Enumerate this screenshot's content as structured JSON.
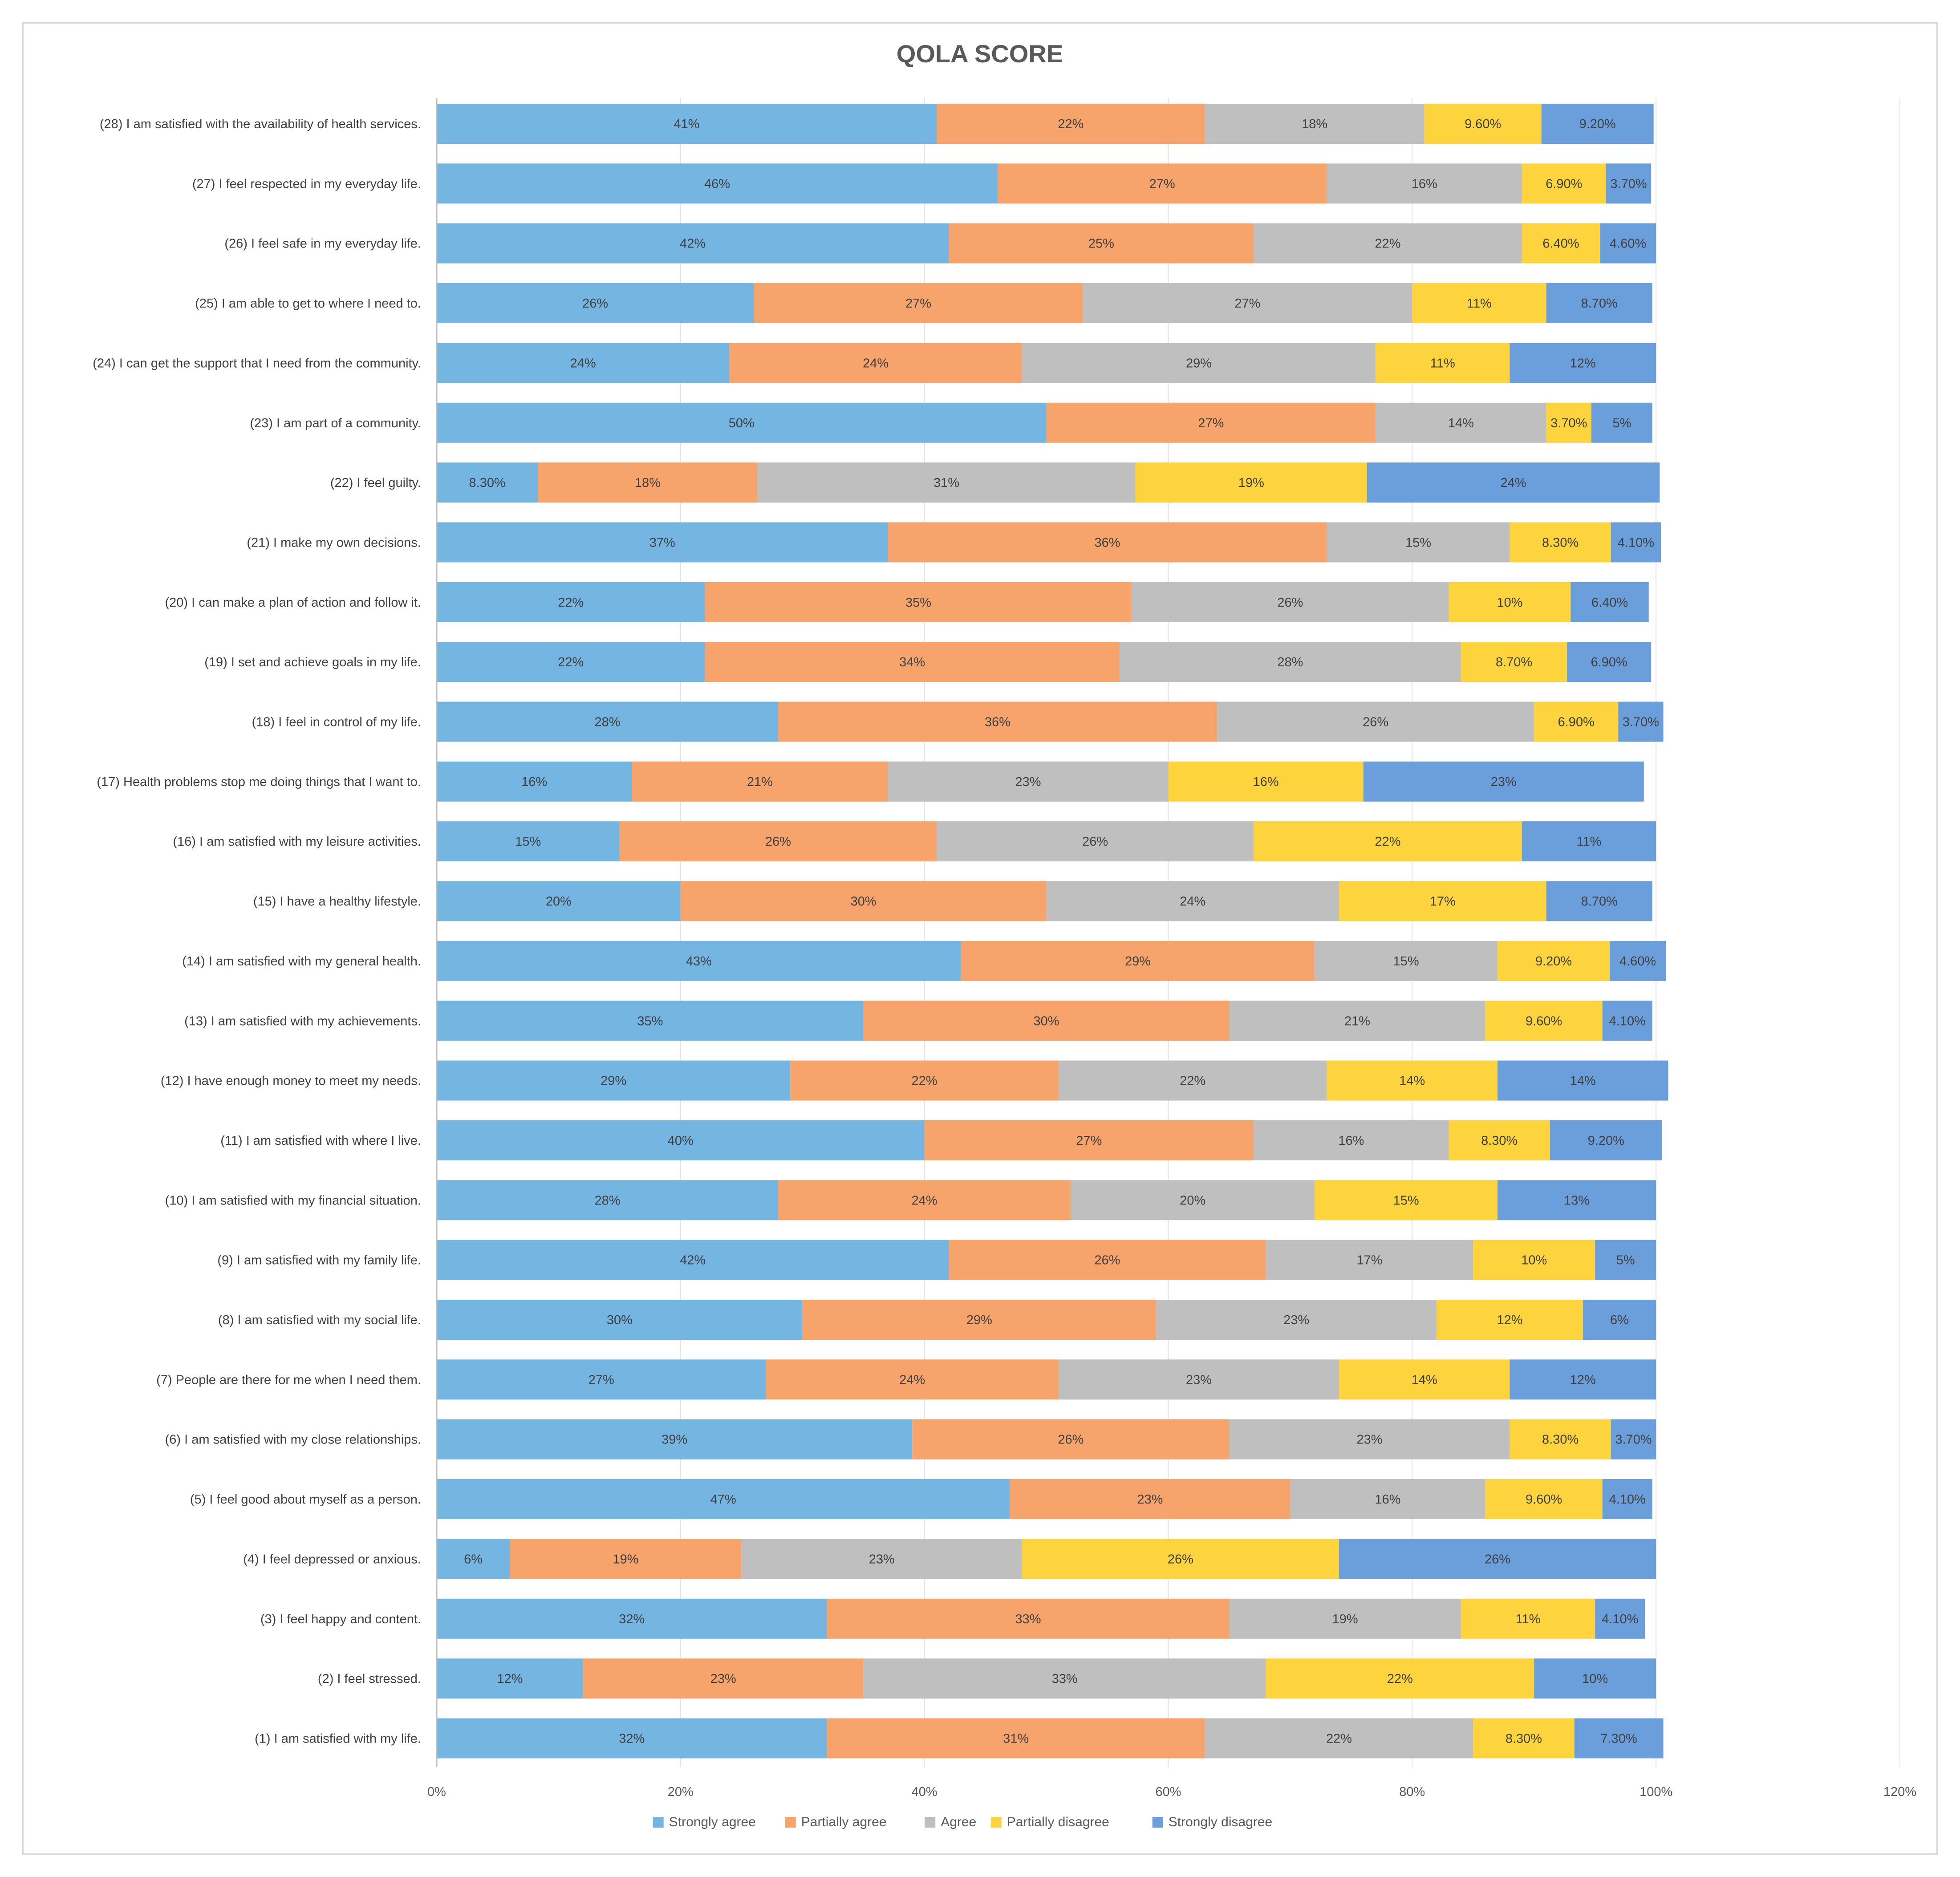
{
  "chart_data": {
    "type": "bar",
    "orientation": "horizontal",
    "stacked": true,
    "title": "QOLA SCORE",
    "xlabel": "",
    "ylabel": "",
    "xlim": [
      0,
      120
    ],
    "x_ticks": [
      "0%",
      "20%",
      "40%",
      "60%",
      "80%",
      "100%",
      "120%"
    ],
    "x_tick_values": [
      0,
      20,
      40,
      60,
      80,
      100,
      120
    ],
    "grid": true,
    "legend_position": "bottom",
    "categories": [
      "(1) I am satisfied with my life.",
      "(2) I feel stressed.",
      "(3) I feel happy and content.",
      "(4) I feel depressed or anxious.",
      "(5) I feel good about myself as a person.",
      "(6) I am satisfied with my close relationships.",
      "(7) People are there for me when I need them.",
      "(8) I am satisfied with my social life.",
      "(9) I am satisfied with my family life.",
      "(10) I am satisfied with my financial situation.",
      "(11) I am satisfied with where I live.",
      "(12) I have enough money to meet my needs.",
      "(13) I am satisfied with my achievements.",
      "(14) I am satisfied with my general health.",
      "(15) I have a healthy lifestyle.",
      "(16) I am satisfied with my leisure activities.",
      "(17) Health problems stop me doing things that I want to.",
      "(18) I feel in control of my life.",
      "(19) I set and achieve goals in my life.",
      "(20) I can make a plan of action and follow it.",
      "(21) I make my own decisions.",
      "(22) I feel guilty.",
      "(23) I am part of a community.",
      "(24) I can get the support that I need from the community.",
      "(25) I am able to get to where I need to.",
      "(26) I feel safe in my everyday life.",
      "(27) I feel respected in my everyday life.",
      "(28) I am satisfied with the availability of health services."
    ],
    "series": [
      {
        "name": "Strongly agree",
        "color": "#74b5e2",
        "values": [
          32,
          12,
          32,
          6,
          47,
          39,
          27,
          30,
          42,
          28,
          40,
          29,
          35,
          43,
          20,
          15,
          16,
          28,
          22,
          22,
          37,
          8.3,
          50,
          24,
          26,
          42,
          46,
          41
        ],
        "labels": [
          "32%",
          "12%",
          "32%",
          "6%",
          "47%",
          "39%",
          "27%",
          "30%",
          "42%",
          "28%",
          "40%",
          "29%",
          "35%",
          "43%",
          "20%",
          "15%",
          "16%",
          "28%",
          "22%",
          "22%",
          "37%",
          "8.30%",
          "50%",
          "24%",
          "26%",
          "42%",
          "46%",
          "41%"
        ]
      },
      {
        "name": "Partially agree",
        "color": "#f7a46c",
        "values": [
          31,
          23,
          33,
          19,
          23,
          26,
          24,
          29,
          26,
          24,
          27,
          22,
          30,
          29,
          30,
          26,
          21,
          36,
          34,
          35,
          36,
          18,
          27,
          24,
          27,
          25,
          27,
          22
        ],
        "labels": [
          "31%",
          "23%",
          "33%",
          "19%",
          "23%",
          "26%",
          "24%",
          "29%",
          "26%",
          "24%",
          "27%",
          "22%",
          "30%",
          "29%",
          "30%",
          "26%",
          "21%",
          "36%",
          "34%",
          "35%",
          "36%",
          "18%",
          "27%",
          "24%",
          "27%",
          "25%",
          "27%",
          "22%"
        ]
      },
      {
        "name": "Agree",
        "color": "#bfbfbf",
        "values": [
          22,
          33,
          19,
          23,
          16,
          23,
          23,
          23,
          17,
          20,
          16,
          22,
          21,
          15,
          24,
          26,
          23,
          26,
          28,
          26,
          15,
          31,
          14,
          29,
          27,
          22,
          16,
          18
        ],
        "labels": [
          "22%",
          "33%",
          "19%",
          "23%",
          "16%",
          "23%",
          "23%",
          "23%",
          "17%",
          "20%",
          "16%",
          "22%",
          "21%",
          "15%",
          "24%",
          "26%",
          "23%",
          "26%",
          "28%",
          "26%",
          "15%",
          "31%",
          "14%",
          "29%",
          "27%",
          "22%",
          "16%",
          "18%"
        ]
      },
      {
        "name": "Partially disagree",
        "color": "#fdd43e",
        "values": [
          8.3,
          22,
          11,
          26,
          9.6,
          8.3,
          14,
          12,
          10,
          15,
          8.3,
          14,
          9.6,
          9.2,
          17,
          22,
          16,
          6.9,
          8.7,
          10,
          8.3,
          19,
          3.7,
          11,
          11,
          6.4,
          6.9,
          9.6
        ],
        "labels": [
          "8.30%",
          "22%",
          "11%",
          "26%",
          "9.60%",
          "8.30%",
          "14%",
          "12%",
          "10%",
          "15%",
          "8.30%",
          "14%",
          "9.60%",
          "9.20%",
          "17%",
          "22%",
          "16%",
          "6.90%",
          "8.70%",
          "10%",
          "8.30%",
          "19%",
          "3.70%",
          "11%",
          "11%",
          "6.40%",
          "6.90%",
          "9.60%"
        ]
      },
      {
        "name": "Strongly disagree",
        "color": "#6b9fdb",
        "values": [
          7.3,
          10,
          4.1,
          26,
          4.1,
          3.7,
          12,
          6,
          5,
          13,
          9.2,
          14,
          4.1,
          4.6,
          8.7,
          11,
          23,
          3.7,
          6.9,
          6.4,
          4.1,
          24,
          5,
          12,
          8.7,
          4.6,
          3.7,
          9.2
        ],
        "labels": [
          "7.30%",
          "10%",
          "4.10%",
          "26%",
          "4.10%",
          "3.70%",
          "12%",
          "6%",
          "5%",
          "13%",
          "9.20%",
          "14%",
          "4.10%",
          "4.60%",
          "8.70%",
          "11%",
          "23%",
          "3.70%",
          "6.90%",
          "6.40%",
          "4.10%",
          "24%",
          "5%",
          "12%",
          "8.70%",
          "4.60%",
          "3.70%",
          "9.20%"
        ]
      }
    ]
  }
}
